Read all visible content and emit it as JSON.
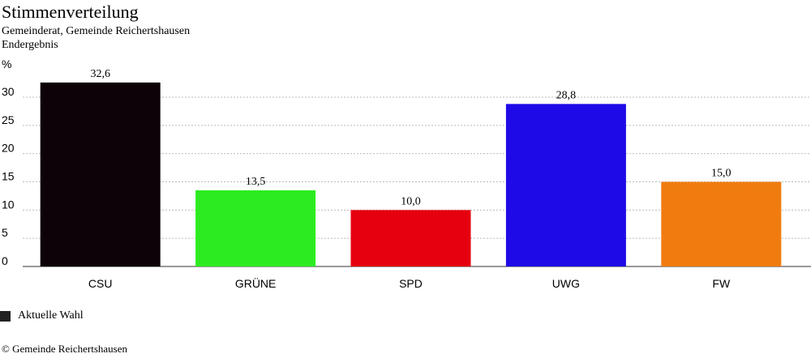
{
  "header": {
    "title": "Stimmenverteilung",
    "subtitle": "Gemeinderat, Gemeinde Reichertshausen",
    "subtitle2": "Endergebnis"
  },
  "chart_data": {
    "type": "bar",
    "title": "Stimmenverteilung",
    "ylabel": "%",
    "xlabel": "",
    "ylim": [
      0,
      30
    ],
    "yticks": [
      0,
      5,
      10,
      15,
      20,
      25,
      30
    ],
    "grid": true,
    "categories": [
      "CSU",
      "GRÜNE",
      "SPD",
      "UWG",
      "FW"
    ],
    "values": [
      32.6,
      13.5,
      10.0,
      28.8,
      15.0
    ],
    "value_labels": [
      "32,6",
      "13,5",
      "10,0",
      "28,8",
      "15,0"
    ],
    "colors": [
      "#0d0207",
      "#2cec21",
      "#e6000f",
      "#1e0ae6",
      "#f07c10"
    ],
    "legend": {
      "position": "bottom-left",
      "entries": [
        {
          "label": "Aktuelle Wahl",
          "color": "#222222"
        }
      ]
    }
  },
  "footer": {
    "copyright": "© Gemeinde Reichertshausen"
  }
}
